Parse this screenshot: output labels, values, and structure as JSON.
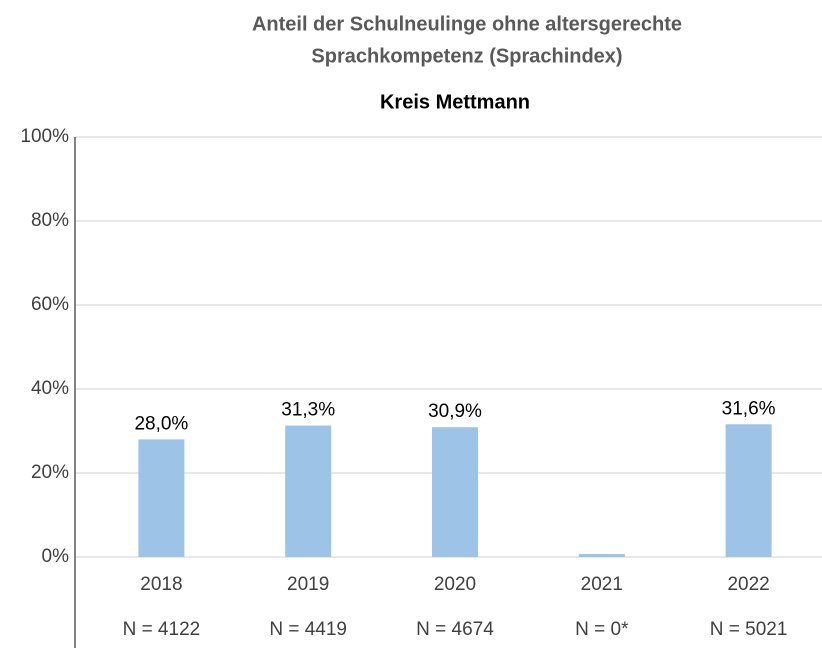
{
  "chart_data": {
    "type": "bar",
    "title": "Anteil der Schulneulinge ohne altersgerechte",
    "title_line2": "Sprachkompetenz (Sprachindex)",
    "subtitle": "Kreis Mettmann",
    "categories": [
      "2018",
      "2019",
      "2020",
      "2021",
      "2022"
    ],
    "sample_sizes": [
      "N = 4122",
      "N = 4419",
      "N = 4674",
      "N = 0*",
      "N = 5021"
    ],
    "values": [
      28.0,
      31.3,
      30.9,
      0.7,
      31.6
    ],
    "value_labels": [
      "28,0%",
      "31,3%",
      "30,9%",
      null,
      "31,6%"
    ],
    "color": "#9dc3e6",
    "ylim": [
      0,
      100
    ],
    "yticks": [
      {
        "value": 0,
        "label": "0%"
      },
      {
        "value": 20,
        "label": "20%"
      },
      {
        "value": 40,
        "label": "40%"
      },
      {
        "value": 60,
        "label": "60%"
      },
      {
        "value": 80,
        "label": "80%"
      },
      {
        "value": 100,
        "label": "100%"
      }
    ],
    "grid": true
  }
}
